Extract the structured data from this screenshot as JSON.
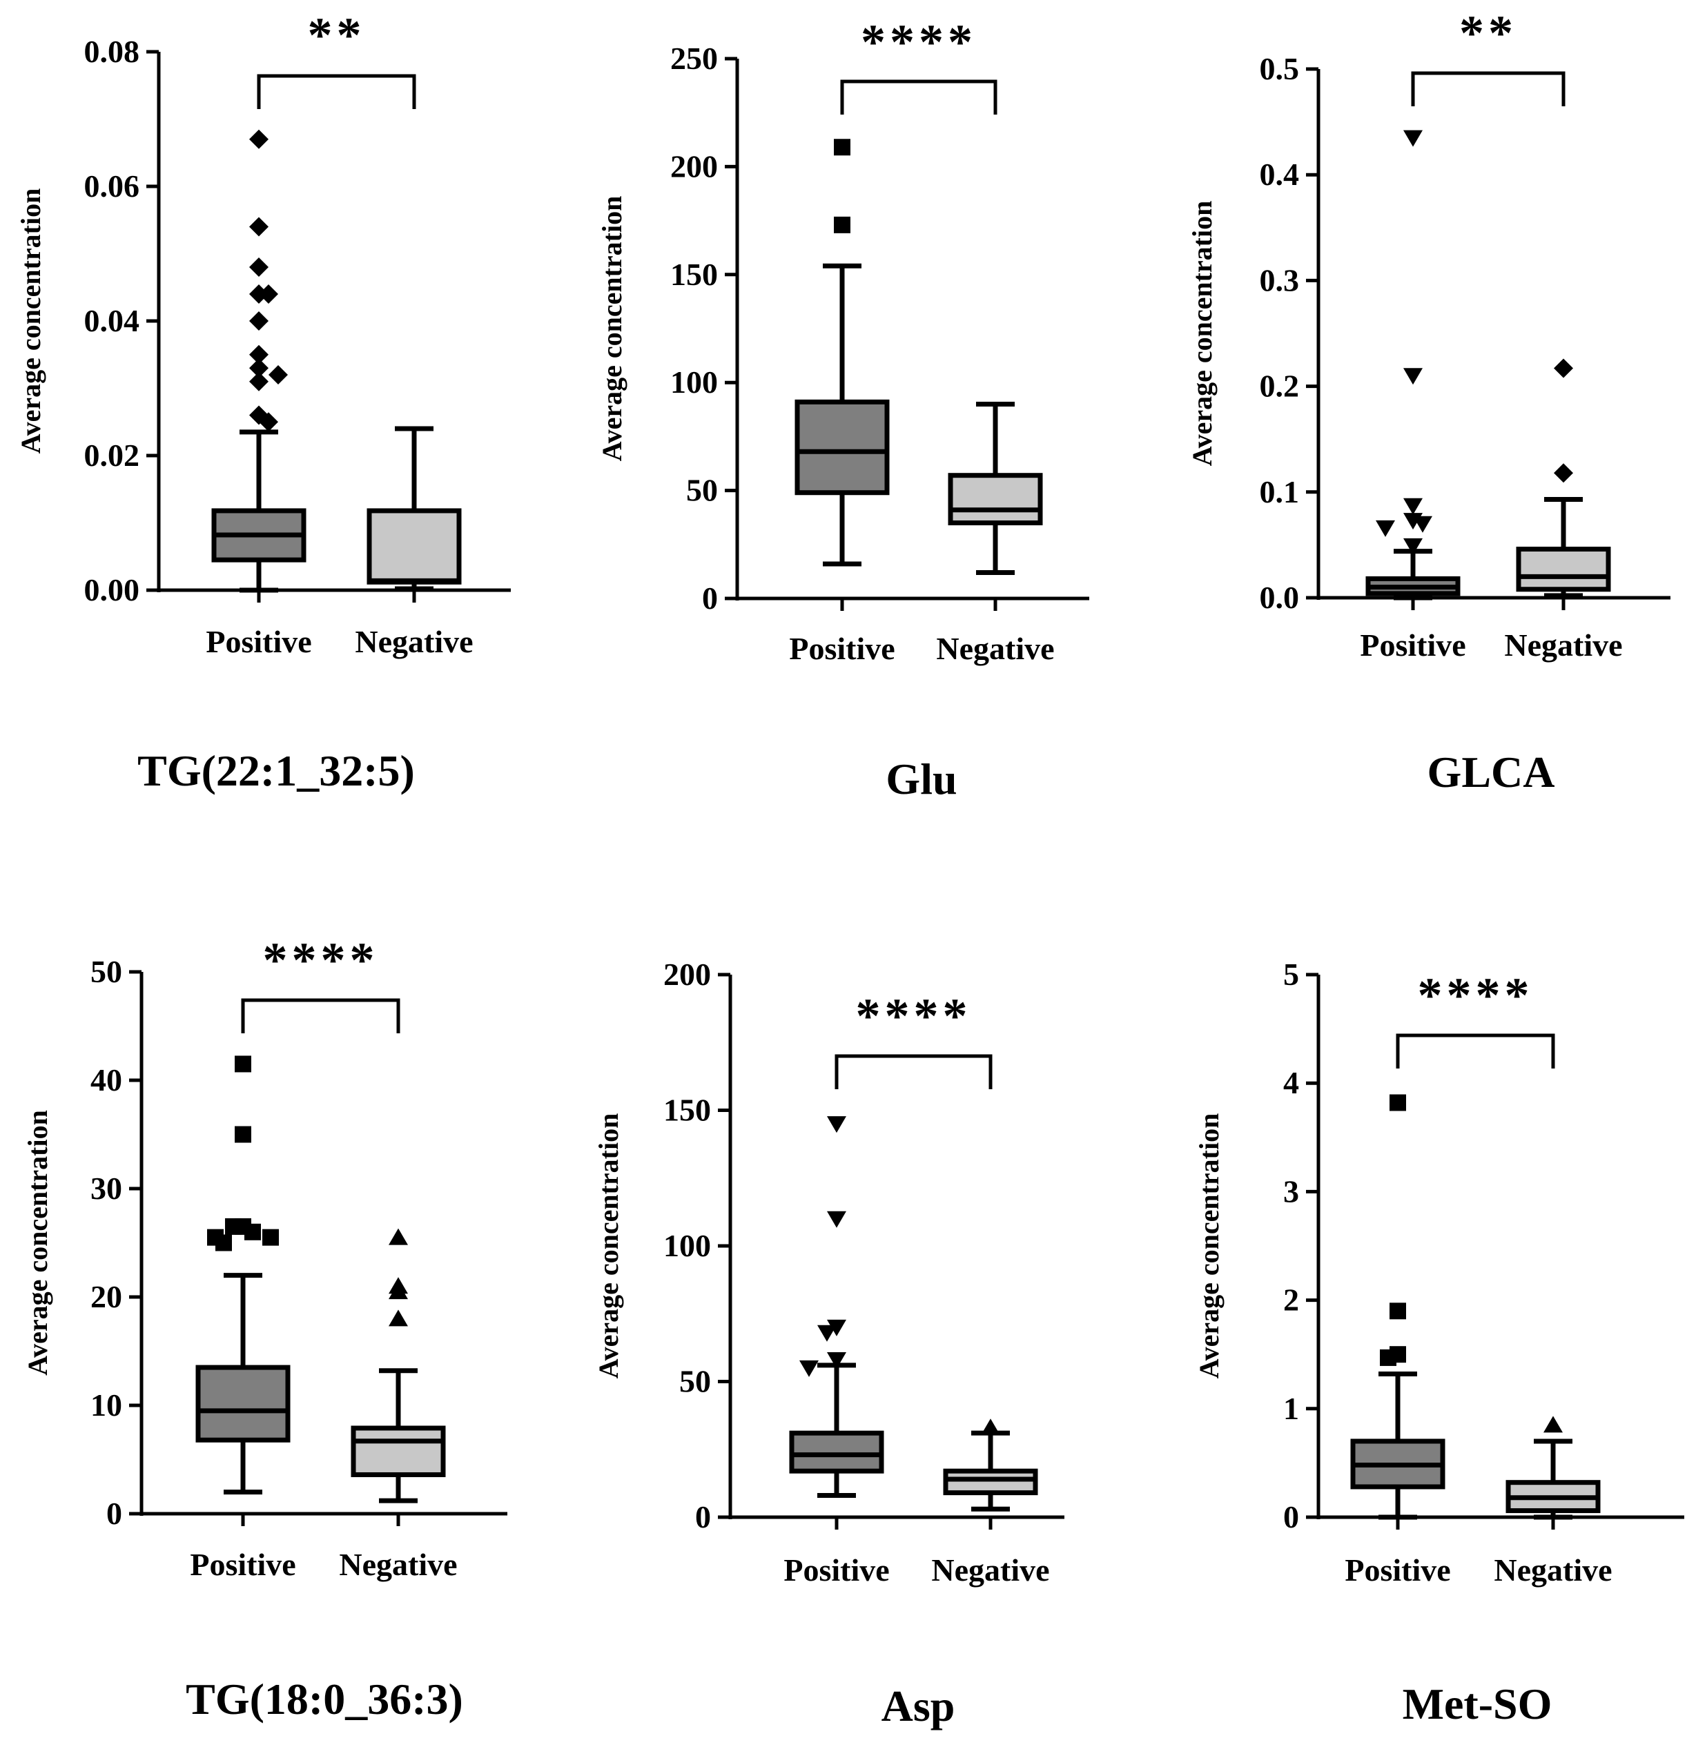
{
  "chart_data": [
    {
      "type": "box",
      "title": "TG(22:1_32:5)",
      "ylabel": "Average concentration",
      "categories": [
        "Positive",
        "Negative"
      ],
      "ylim": [
        0,
        0.08
      ],
      "yticks": [
        0,
        0.02,
        0.04,
        0.06,
        0.08
      ],
      "ytick_labels": [
        "0.00",
        "0.02",
        "0.04",
        "0.06",
        "0.08"
      ],
      "significance": "**",
      "boxes": [
        {
          "name": "Positive",
          "whisker_low": 0.0,
          "q1": 0.0045,
          "median": 0.0082,
          "q3": 0.0118,
          "whisker_high": 0.0235,
          "fill": "#7f7f7f",
          "outliers": [
            0.067,
            0.054,
            0.048,
            0.044,
            0.044,
            0.04,
            0.035,
            0.033,
            0.032,
            0.031,
            0.026,
            0.025
          ],
          "marker": "diamond"
        },
        {
          "name": "Negative",
          "whisker_low": 0.0002,
          "q1": 0.0012,
          "median": 0.0014,
          "q3": 0.0118,
          "whisker_high": 0.024,
          "fill": "#c8c8c8",
          "outliers": [],
          "marker": "diamond"
        }
      ]
    },
    {
      "type": "box",
      "title": "Glu",
      "ylabel": "Average concentration",
      "categories": [
        "Positive",
        "Negative"
      ],
      "ylim": [
        0,
        250
      ],
      "yticks": [
        0,
        50,
        100,
        150,
        200,
        250
      ],
      "ytick_labels": [
        "0",
        "50",
        "100",
        "150",
        "200",
        "250"
      ],
      "significance": "****",
      "boxes": [
        {
          "name": "Positive",
          "whisker_low": 16,
          "q1": 49,
          "median": 68,
          "q3": 91,
          "whisker_high": 154,
          "fill": "#7f7f7f",
          "outliers": [
            209,
            173
          ],
          "marker": "square"
        },
        {
          "name": "Negative",
          "whisker_low": 12,
          "q1": 35,
          "median": 41,
          "q3": 57,
          "whisker_high": 90,
          "fill": "#c8c8c8",
          "outliers": [],
          "marker": "square"
        }
      ]
    },
    {
      "type": "box",
      "title": "GLCA",
      "ylabel": "Average concentration",
      "categories": [
        "Positive",
        "Negative"
      ],
      "ylim": [
        0,
        0.5
      ],
      "yticks": [
        0,
        0.1,
        0.2,
        0.3,
        0.4,
        0.5
      ],
      "ytick_labels": [
        "0.0",
        "0.1",
        "0.2",
        "0.3",
        "0.4",
        "0.5"
      ],
      "significance": "**",
      "boxes": [
        {
          "name": "Positive",
          "whisker_low": 0.0,
          "q1": 0.004,
          "median": 0.01,
          "q3": 0.018,
          "whisker_high": 0.044,
          "fill": "#7f7f7f",
          "outliers": [
            0.435,
            0.21,
            0.087,
            0.073,
            0.07,
            0.066,
            0.049
          ],
          "marker": "triangle-down"
        },
        {
          "name": "Negative",
          "whisker_low": 0.002,
          "q1": 0.008,
          "median": 0.02,
          "q3": 0.046,
          "whisker_high": 0.093,
          "fill": "#c8c8c8",
          "outliers": [
            0.217,
            0.118
          ],
          "marker": "diamond"
        }
      ]
    },
    {
      "type": "box",
      "title": "TG(18:0_36:3)",
      "ylabel": "Average concentration",
      "categories": [
        "Positive",
        "Negative"
      ],
      "ylim": [
        0,
        50
      ],
      "yticks": [
        0,
        10,
        20,
        30,
        40,
        50
      ],
      "ytick_labels": [
        "0",
        "10",
        "20",
        "30",
        "40",
        "50"
      ],
      "significance": "****",
      "boxes": [
        {
          "name": "Positive",
          "whisker_low": 2,
          "q1": 6.8,
          "median": 9.5,
          "q3": 13.5,
          "whisker_high": 22,
          "fill": "#7f7f7f",
          "outliers": [
            41.5,
            35,
            26.5,
            26.5,
            26,
            25.5,
            25.5,
            25
          ],
          "marker": "square"
        },
        {
          "name": "Negative",
          "whisker_low": 1.2,
          "q1": 3.6,
          "median": 6.7,
          "q3": 7.9,
          "whisker_high": 13.2,
          "fill": "#c8c8c8",
          "outliers": [
            25.5,
            21,
            20.5,
            18
          ],
          "marker": "triangle-up"
        }
      ]
    },
    {
      "type": "box",
      "title": "Asp",
      "ylabel": "Average concentration",
      "categories": [
        "Positive",
        "Negative"
      ],
      "ylim": [
        0,
        200
      ],
      "yticks": [
        0,
        50,
        100,
        150,
        200
      ],
      "ytick_labels": [
        "0",
        "50",
        "100",
        "150",
        "200"
      ],
      "significance": "****",
      "boxes": [
        {
          "name": "Positive",
          "whisker_low": 8,
          "q1": 17,
          "median": 23,
          "q3": 31,
          "whisker_high": 56,
          "fill": "#7f7f7f",
          "outliers": [
            145,
            110,
            70,
            68,
            58,
            55
          ],
          "marker": "triangle-down"
        },
        {
          "name": "Negative",
          "whisker_low": 3,
          "q1": 9,
          "median": 14,
          "q3": 17,
          "whisker_high": 31,
          "fill": "#c8c8c8",
          "outliers": [
            33
          ],
          "marker": "triangle-up"
        }
      ]
    },
    {
      "type": "box",
      "title": "Met-SO",
      "ylabel": "Average concentration",
      "categories": [
        "Positive",
        "Negative"
      ],
      "ylim": [
        0,
        5
      ],
      "yticks": [
        0,
        1,
        2,
        3,
        4,
        5
      ],
      "ytick_labels": [
        "0",
        "1",
        "2",
        "3",
        "4",
        "5"
      ],
      "significance": "****",
      "boxes": [
        {
          "name": "Positive",
          "whisker_low": 0.0,
          "q1": 0.28,
          "median": 0.48,
          "q3": 0.7,
          "whisker_high": 1.32,
          "fill": "#7f7f7f",
          "outliers": [
            3.82,
            1.9,
            1.5,
            1.47
          ],
          "marker": "square"
        },
        {
          "name": "Negative",
          "whisker_low": 0.0,
          "q1": 0.06,
          "median": 0.18,
          "q3": 0.32,
          "whisker_high": 0.7,
          "fill": "#c8c8c8",
          "outliers": [
            0.85
          ],
          "marker": "triangle-up"
        }
      ]
    }
  ]
}
